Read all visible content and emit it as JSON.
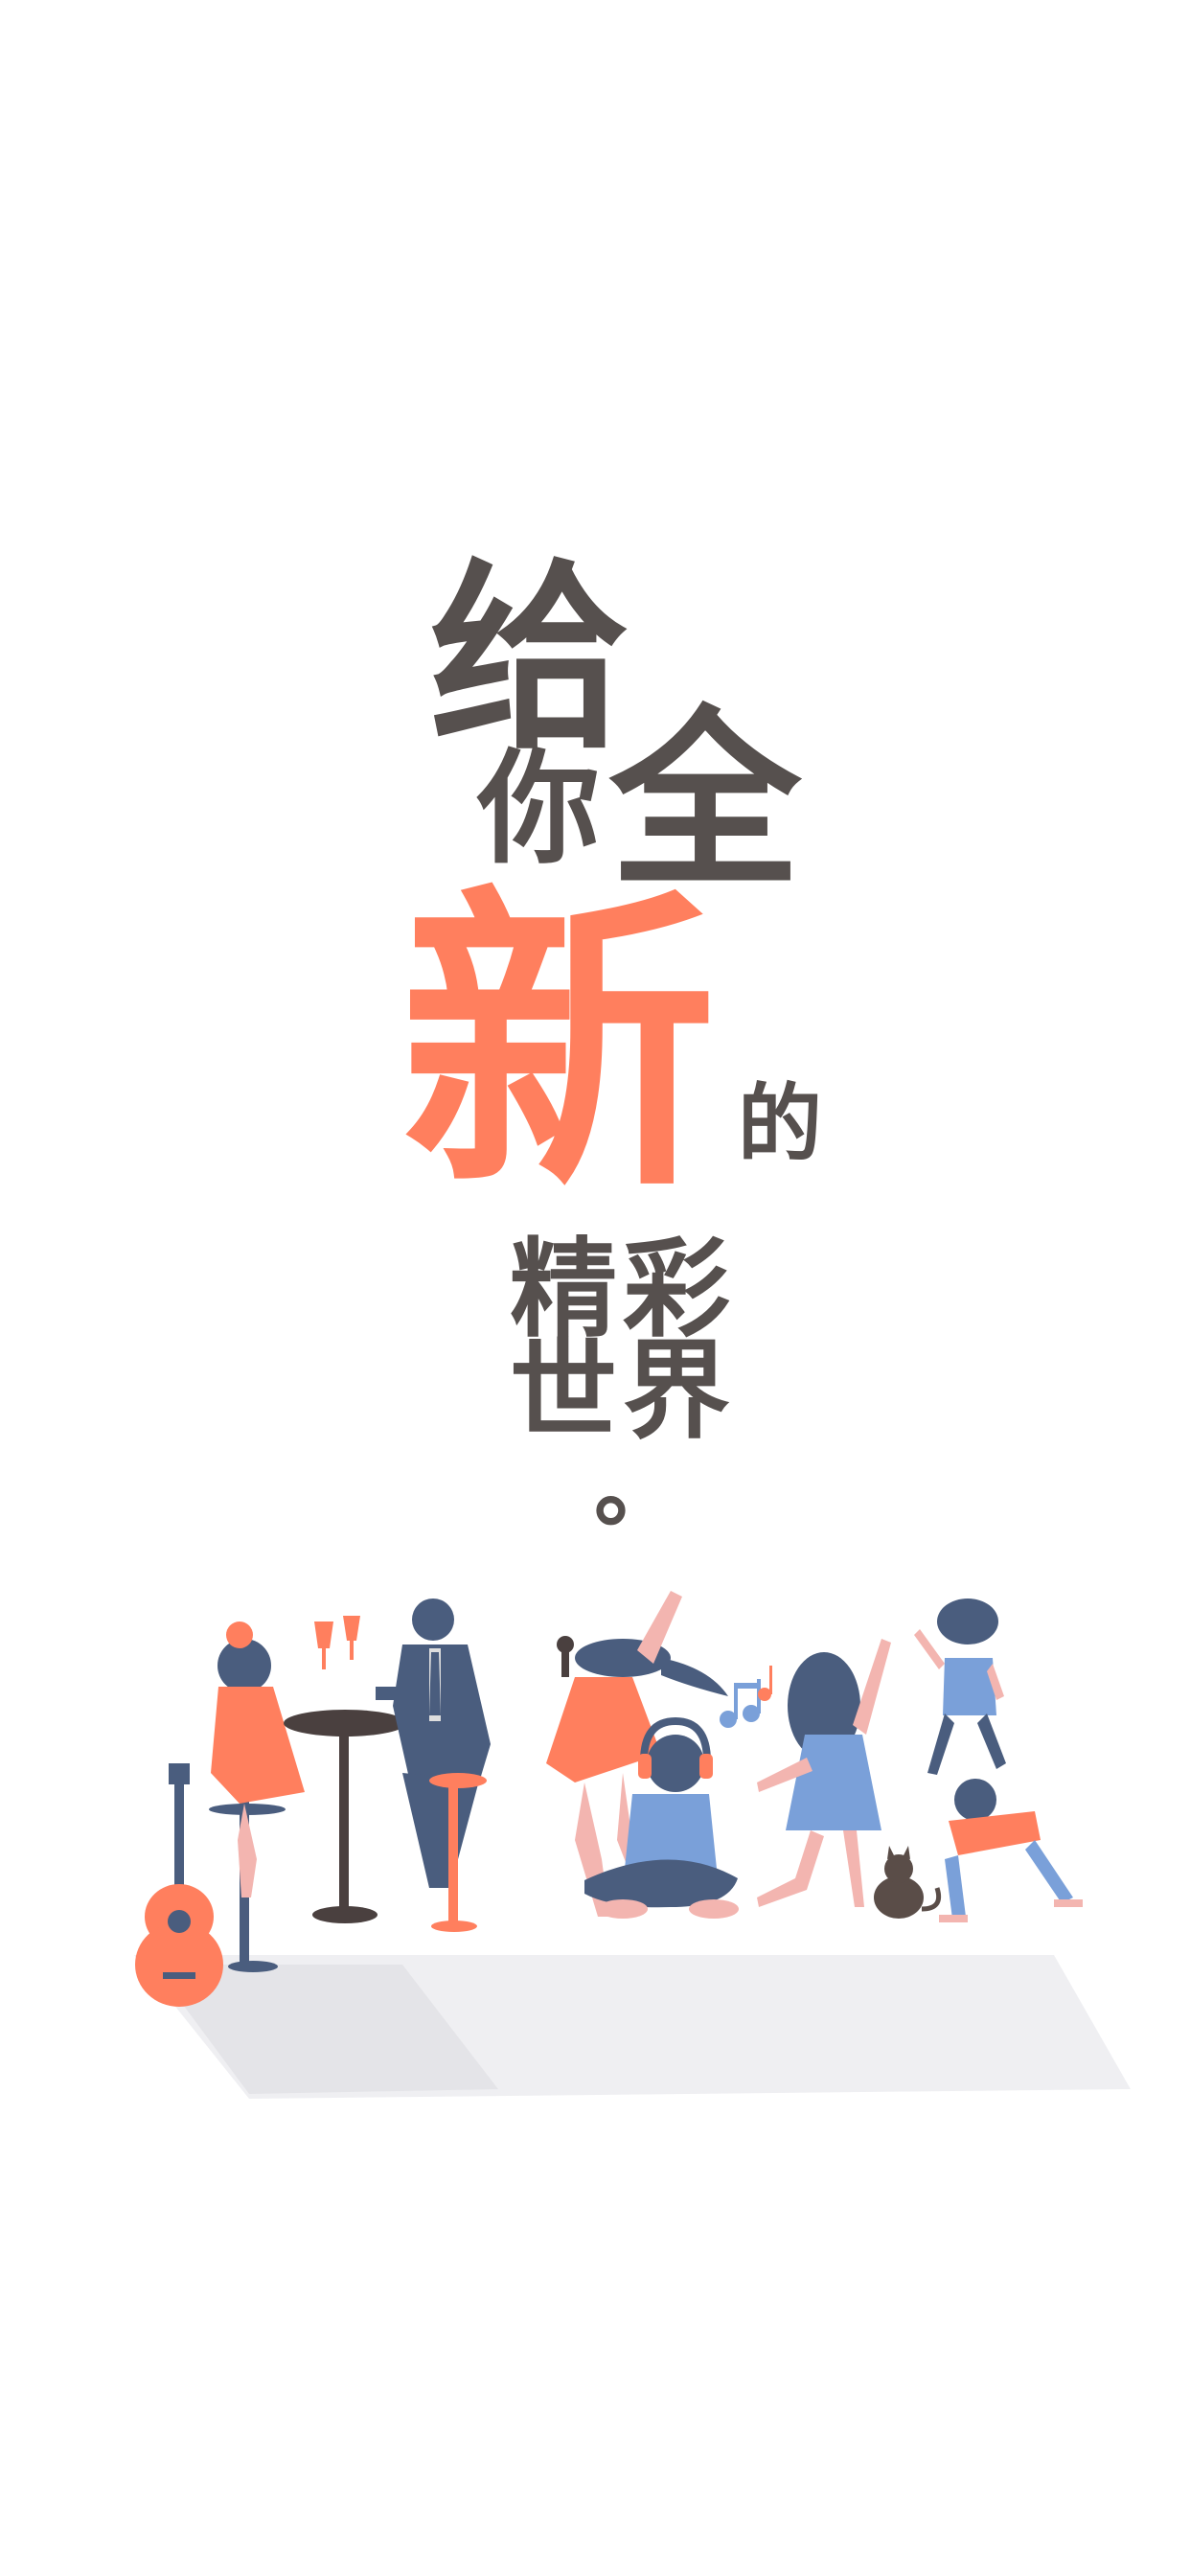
{
  "headline": {
    "chars": [
      "给",
      "你",
      "全",
      "新",
      "的",
      "精",
      "彩",
      "世",
      "界",
      "。"
    ]
  },
  "colors": {
    "text_dark": "#56504e",
    "accent": "#ff7f5e",
    "navy": "#4a5d7e",
    "blue": "#7aa0d9",
    "pink": "#f3b5b0",
    "shadow": "#e7e7ea",
    "brown": "#5a4d48"
  },
  "illustration": {
    "icons": [
      "guitar-icon",
      "music-note-icon",
      "cat-icon",
      "headphones-icon",
      "wine-glass-icon",
      "microphone-icon"
    ]
  }
}
